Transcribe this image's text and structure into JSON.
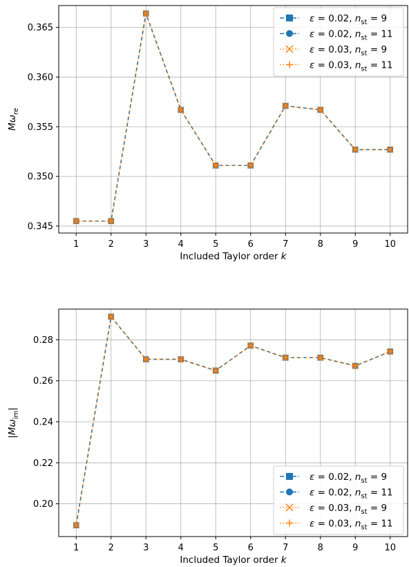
{
  "chart_data": [
    {
      "type": "line",
      "x": [
        1,
        2,
        3,
        4,
        5,
        6,
        7,
        8,
        9,
        10
      ],
      "xlabel": "Included Taylor order k",
      "ylabel": "Mω_re",
      "xlim": [
        0.5,
        10.5
      ],
      "ylim": [
        0.3443,
        0.3672
      ],
      "xticks": [
        "1",
        "2",
        "3",
        "4",
        "5",
        "6",
        "7",
        "8",
        "9",
        "10"
      ],
      "yticks": [
        {
          "value": 0.345,
          "label": "0.345"
        },
        {
          "value": 0.35,
          "label": "0.350"
        },
        {
          "value": 0.355,
          "label": "0.355"
        },
        {
          "value": 0.36,
          "label": "0.360"
        },
        {
          "value": 0.365,
          "label": "0.365"
        }
      ],
      "grid": true,
      "legend_position": "top-right",
      "series": [
        {
          "name": "ε = 0.02, n_st = 9",
          "color": "#1f77b4",
          "linestyle": "dashed",
          "marker": "square",
          "values": [
            0.3455,
            0.3455,
            0.3664,
            0.3567,
            0.3511,
            0.3511,
            0.3571,
            0.3567,
            0.3527,
            0.3527
          ]
        },
        {
          "name": "ε = 0.02, n_st = 11",
          "color": "#1f77b4",
          "linestyle": "dashed",
          "marker": "circle",
          "values": [
            0.3455,
            0.3455,
            0.3664,
            0.3567,
            0.3511,
            0.3511,
            0.3571,
            0.3567,
            0.3527,
            0.3527
          ]
        },
        {
          "name": "ε = 0.03, n_st = 9",
          "color": "#ff7f0e",
          "linestyle": "dotted",
          "marker": "x",
          "values": [
            0.3455,
            0.3455,
            0.3664,
            0.3567,
            0.3511,
            0.3511,
            0.3571,
            0.3567,
            0.3527,
            0.3527
          ]
        },
        {
          "name": "ε = 0.03, n_st = 11",
          "color": "#ff7f0e",
          "linestyle": "dotted",
          "marker": "plus",
          "values": [
            0.3455,
            0.3455,
            0.3664,
            0.3567,
            0.3511,
            0.3511,
            0.3571,
            0.3567,
            0.3527,
            0.3527
          ]
        }
      ]
    },
    {
      "type": "line",
      "x": [
        1,
        2,
        3,
        4,
        5,
        6,
        7,
        8,
        9,
        10
      ],
      "xlabel": "Included Taylor order k",
      "ylabel": "|Mω_im|",
      "xlim": [
        0.5,
        10.5
      ],
      "ylim": [
        0.184,
        0.295
      ],
      "xticks": [
        "1",
        "2",
        "3",
        "4",
        "5",
        "6",
        "7",
        "8",
        "9",
        "10"
      ],
      "yticks": [
        {
          "value": 0.2,
          "label": "0.20"
        },
        {
          "value": 0.22,
          "label": "0.22"
        },
        {
          "value": 0.24,
          "label": "0.24"
        },
        {
          "value": 0.26,
          "label": "0.26"
        },
        {
          "value": 0.28,
          "label": "0.28"
        }
      ],
      "grid": true,
      "legend_position": "bottom-right",
      "series": [
        {
          "name": "ε = 0.02, n_st = 9",
          "color": "#1f77b4",
          "linestyle": "dashed",
          "marker": "square",
          "values": [
            0.1895,
            0.2913,
            0.2705,
            0.2705,
            0.265,
            0.2772,
            0.2713,
            0.2713,
            0.2673,
            0.2743
          ]
        },
        {
          "name": "ε = 0.02, n_st = 11",
          "color": "#1f77b4",
          "linestyle": "dashed",
          "marker": "circle",
          "values": [
            0.1895,
            0.2913,
            0.2705,
            0.2705,
            0.265,
            0.2772,
            0.2713,
            0.2713,
            0.2673,
            0.2743
          ]
        },
        {
          "name": "ε = 0.03, n_st = 9",
          "color": "#ff7f0e",
          "linestyle": "dotted",
          "marker": "x",
          "values": [
            0.1895,
            0.2913,
            0.2705,
            0.2705,
            0.265,
            0.2772,
            0.2713,
            0.2713,
            0.2673,
            0.2743
          ]
        },
        {
          "name": "ε = 0.03, n_st = 11",
          "color": "#ff7f0e",
          "linestyle": "dotted",
          "marker": "plus",
          "values": [
            0.1895,
            0.2913,
            0.2705,
            0.2705,
            0.265,
            0.2772,
            0.2713,
            0.2713,
            0.2673,
            0.2743
          ]
        }
      ]
    }
  ]
}
